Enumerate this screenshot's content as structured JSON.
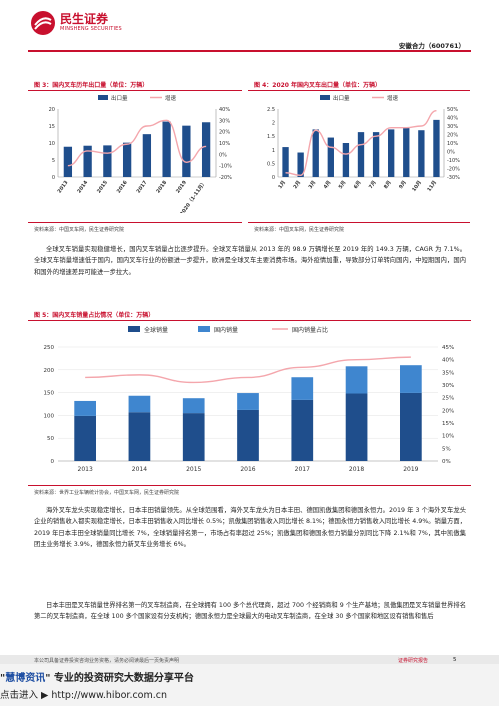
{
  "header": {
    "logo_cn": "民生证券",
    "logo_en": "MINSHENG SECURITIES",
    "company": "安徽合力（600761）"
  },
  "fig3": {
    "title": "图 3：国内叉车历年出口量（单位：万辆）",
    "source": "资料来源：中国叉车网，民生证券研究院",
    "legend": [
      "出口量",
      "增速"
    ]
  },
  "fig4": {
    "title": "图 4：2020 年国内叉车出口量（单位：万辆）",
    "source": "资料来源：中国叉车网，民生证券研究院",
    "legend": [
      "出口量",
      "增速"
    ]
  },
  "fig5": {
    "title": "图 5：国内叉车销量占比情况（单位：万辆）",
    "source": "资料来源：世界工业车辆统计协会，中国叉车网，民生证券研究院",
    "legend": [
      "全球销量",
      "国内销量",
      "国内销量占比"
    ]
  },
  "paragraphs": {
    "p1": "全球叉车销量实现稳健增长，国内叉车销量占比逐步提升。全球叉车销量从 2013 年的 98.9 万辆增长至 2019 年的 149.3 万辆，CAGR 为 7.1%。全球叉车销量增速低于国内，国内叉车行业的份额进一步提升，欧洲是全球叉车主要消费市场。海外疫情加重，导致部分订单转向国内，中短期国内，国内和国外的增速差异可能进一步拉大。",
    "p2": "海外叉车龙头实现稳定增长，日本丰田销量领先。从全球范围看，海外叉车龙头为日本丰田、德国凯傲集团和德国永恒力。2019 年 3 个海外叉车龙头企业的销售收入都实现稳定增长，日本丰田销售收入同比增长 0.5%；凯傲集团销售收入同比增长 8.1%；德国永恒力销售收入同比增长 4.9%。销量方面，2019 年日本丰田全球销量同比增长 7%，全球销量排名第一，市场占有率超过 25%；凯傲集团和德国永恒力销量分别同比下降 2.1%和 7%，其中凯傲集团主业务增长 3.9%，德国永恒力新叉车业务增长 6%。",
    "p3": "日本丰田是叉车销量世界排名第一的叉车制造商，在全球拥有 100 多个总代理商，超过 700 个经销商和 9 个生产基地；凯傲集团是叉车销量世界排名第二的叉车制造商，在全球 100 多个国家设有分支机构；德国永恒力是全球最大的电动叉车制造商，在全球 30 多个国家和地区设有销售和售后"
  },
  "footer": {
    "disclaimer": "本公司具备证券投资咨询业务资格，请务必阅读最后一页免责声明",
    "report_label": "证券研究报告",
    "page": "5",
    "hibor_prefix": "\"",
    "hibor_brand": "慧博资讯",
    "hibor_suffix": "\" 专业的投资研究大数据分享平台",
    "hibor_url_line": "点击进入 ▶ http://www.hibor.com.cn"
  },
  "chart_data": [
    {
      "type": "bar",
      "categories": [
        "2013",
        "2014",
        "2015",
        "2016",
        "2017",
        "2018",
        "2019",
        "2020（1-11月）"
      ],
      "series": [
        {
          "name": "出口量",
          "type": "bar",
          "values": [
            8.9,
            9.2,
            9.3,
            10.1,
            12.6,
            16.3,
            15.1,
            16.1
          ]
        },
        {
          "name": "增速",
          "type": "line",
          "axis": "right",
          "values": [
            -10,
            3,
            1,
            9,
            25,
            30,
            -7,
            7
          ]
        }
      ],
      "ylim": [
        0,
        20
      ],
      "y_ticks": [
        "0",
        "5",
        "10",
        "15",
        "20"
      ],
      "y2lim": [
        -20,
        40
      ],
      "y2_ticks": [
        "-20%",
        "-10%",
        "0%",
        "10%",
        "20%",
        "30%",
        "40%"
      ],
      "legend": "top-center",
      "grid": false
    },
    {
      "type": "bar",
      "categories": [
        "1月",
        "2月",
        "3月",
        "4月",
        "5月",
        "6月",
        "7月",
        "8月",
        "9月",
        "10月",
        "11月"
      ],
      "series": [
        {
          "name": "出口量",
          "type": "bar",
          "values": [
            1.1,
            0.9,
            1.75,
            1.45,
            1.25,
            1.65,
            1.65,
            1.75,
            1.82,
            1.72,
            2.1
          ]
        },
        {
          "name": "增速",
          "type": "line",
          "axis": "right",
          "values": [
            -25,
            -28,
            25,
            5,
            -3,
            8,
            18,
            28,
            28,
            30,
            48
          ]
        }
      ],
      "ylim": [
        0,
        2.5
      ],
      "y_ticks": [
        "0",
        "0.5",
        "1",
        "1.5",
        "2",
        "2.5"
      ],
      "y2lim": [
        -30,
        50
      ],
      "y2_ticks": [
        "-30%",
        "-20%",
        "-10%",
        "0%",
        "10%",
        "20%",
        "30%",
        "40%",
        "50%"
      ],
      "legend": "top-center",
      "grid": false
    },
    {
      "type": "bar",
      "categories": [
        "2013",
        "2014",
        "2015",
        "2016",
        "2017",
        "2018",
        "2019"
      ],
      "series": [
        {
          "name": "全球销量",
          "type": "bar",
          "values": [
            98.9,
            107,
            105,
            112,
            134,
            148,
            149.3
          ]
        },
        {
          "name": "国内销量",
          "type": "bar",
          "stacked_top": true,
          "values": [
            32.8,
            36.1,
            32.7,
            37.0,
            49.7,
            59.7,
            60.8
          ]
        },
        {
          "name": "国内销量占比",
          "type": "line",
          "axis": "right",
          "values": [
            33,
            34,
            31,
            33,
            37,
            40,
            41
          ]
        }
      ],
      "ylim": [
        0,
        250
      ],
      "y_ticks": [
        "0",
        "50",
        "100",
        "150",
        "200",
        "250"
      ],
      "y2lim": [
        0,
        45
      ],
      "y2_ticks": [
        "0%",
        "5%",
        "10%",
        "15%",
        "20%",
        "25%",
        "30%",
        "35%",
        "40%",
        "45%"
      ],
      "legend": "top-center",
      "grid": true
    }
  ]
}
